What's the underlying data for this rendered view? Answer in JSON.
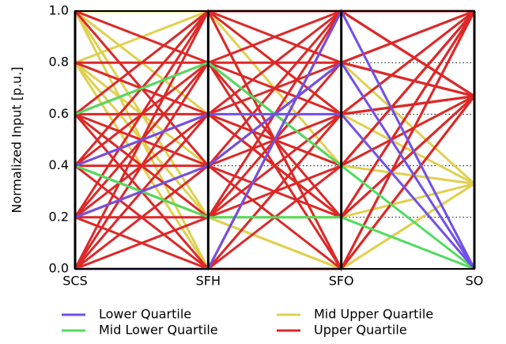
{
  "chart_data": {
    "type": "parallel",
    "ylabel": "Normalized Input [p.u.]",
    "categories": [
      "SCS",
      "SFH",
      "SFO",
      "SO"
    ],
    "ylim": [
      0,
      1
    ],
    "yticks": [
      {
        "value": 0,
        "label": "0.0"
      },
      0.2,
      0.4,
      0.6,
      0.8,
      {
        "value": 1,
        "label": "1.0"
      }
    ],
    "grid": true,
    "legend": "lower center",
    "series": [
      {
        "name": "Mid Upper Quartile",
        "color": "#e0d050",
        "values": [
          [
            1,
            1,
            0,
            0.33
          ],
          [
            1,
            0.2,
            0.2,
            0.33
          ],
          [
            1,
            0,
            0.6,
            0.67
          ],
          [
            0.8,
            1,
            0.4,
            0.33
          ],
          [
            0.8,
            0.4,
            0.8,
            0.33
          ],
          [
            0.8,
            0,
            1,
            0.67
          ],
          [
            0.6,
            0.2,
            0,
            0.67
          ],
          [
            0.4,
            1,
            0.6,
            0.33
          ],
          [
            1,
            0.6,
            0.4,
            0.67
          ],
          [
            0.8,
            0.2,
            0,
            0.33
          ]
        ]
      },
      {
        "name": "Upper Quartile",
        "color": "#dc2828",
        "values": [
          [
            0.6,
            1,
            1,
            1
          ],
          [
            0.4,
            1,
            0.8,
            0.67
          ],
          [
            0.2,
            1,
            0,
            1
          ],
          [
            0,
            1,
            0.6,
            0.67
          ],
          [
            0.6,
            0.8,
            0.2,
            1
          ],
          [
            0.4,
            0.8,
            1,
            0.67
          ],
          [
            0.2,
            0.8,
            0.4,
            1
          ],
          [
            0,
            0.8,
            0,
            0.67
          ],
          [
            0.6,
            0.6,
            0.8,
            1
          ],
          [
            0.4,
            0.6,
            0.2,
            0.67
          ],
          [
            0.2,
            0.6,
            1,
            1
          ],
          [
            0,
            0.6,
            0.4,
            0.67
          ],
          [
            0.6,
            0.4,
            0,
            1
          ],
          [
            0.4,
            0.4,
            0.6,
            0.67
          ],
          [
            0.2,
            0.4,
            0.8,
            1
          ],
          [
            0,
            0.4,
            0.2,
            0.67
          ],
          [
            0.6,
            0.2,
            0.6,
            1
          ],
          [
            0.4,
            0.2,
            1,
            0.67
          ],
          [
            0.2,
            0.2,
            0.4,
            1
          ],
          [
            0,
            0.2,
            0.8,
            0.67
          ],
          [
            0.6,
            0,
            0.4,
            1
          ],
          [
            0.4,
            0,
            0,
            0.67
          ],
          [
            0.2,
            0,
            0.6,
            1
          ],
          [
            0,
            0,
            1,
            0.67
          ],
          [
            0.8,
            0.6,
            0.2,
            1
          ],
          [
            0.8,
            0.8,
            0.6,
            0.67
          ],
          [
            1,
            0.4,
            1,
            1
          ],
          [
            1,
            0.8,
            0.8,
            0.67
          ]
        ]
      },
      {
        "name": "Mid Lower Quartile",
        "color": "#50dc60",
        "values": [
          [
            0.6,
            0.8,
            0.4,
            0
          ],
          [
            0.4,
            0.2,
            0.2,
            0
          ]
        ]
      },
      {
        "name": "Lower Quartile",
        "color": "#7050e8",
        "values": [
          [
            0,
            0,
            1,
            0
          ],
          [
            0.2,
            0.4,
            0.8,
            0
          ],
          [
            0.4,
            0.6,
            0.6,
            0
          ]
        ]
      }
    ]
  }
}
